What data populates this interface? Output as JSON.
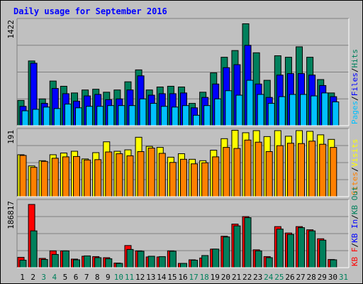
{
  "chart_data": {
    "type": "bar",
    "title": "Daily usage for September 2016",
    "days": [
      "1",
      "2",
      "3",
      "4",
      "5",
      "6",
      "7",
      "8",
      "9",
      "10",
      "11",
      "12",
      "13",
      "14",
      "15",
      "16",
      "17",
      "18",
      "19",
      "20",
      "21",
      "22",
      "23",
      "24",
      "25",
      "26",
      "27",
      "28",
      "29",
      "30",
      "31"
    ],
    "weekend_days": [
      "3",
      "4",
      "10",
      "11",
      "17",
      "18",
      "24",
      "25",
      "31"
    ],
    "colors": {
      "hits": "#00805c",
      "files": "#0000ff",
      "pages": "#00c0ff",
      "visits": "#ffff00",
      "sites": "#ff8000",
      "kb_in": "#ff0000",
      "kb_out": "#00805c",
      "weekday_tick": "#000000",
      "weekend_tick": "#00805c",
      "title": "#0000ff"
    },
    "panels": [
      {
        "id": "hits-files-pages",
        "max_label": "1422",
        "max_value": 1422,
        "legend": [
          {
            "text": "Pages",
            "color": "#00c0ff"
          },
          {
            "text": "/",
            "color": "#000000"
          },
          {
            "text": "Files",
            "color": "#0000ff"
          },
          {
            "text": "/",
            "color": "#000000"
          },
          {
            "text": "Hits",
            "color": "#00805c"
          }
        ],
        "series": [
          {
            "name": "Hits",
            "color": "#00805c",
            "values": [
              340,
              870,
              360,
              600,
              530,
              440,
              480,
              490,
              450,
              480,
              590,
              750,
              480,
              520,
              530,
              520,
              300,
              450,
              710,
              920,
              1010,
              1370,
              980,
              610,
              940,
              920,
              1060,
              920,
              620,
              440,
              0
            ]
          },
          {
            "name": "Files",
            "color": "#0000ff",
            "values": [
              260,
              840,
              300,
              500,
              430,
              330,
              400,
              420,
              350,
              360,
              480,
              670,
              410,
              430,
              430,
              440,
              240,
              380,
              560,
              780,
              820,
              1080,
              560,
              380,
              680,
              700,
              700,
              680,
              540,
              390,
              0
            ]
          },
          {
            "name": "Pages",
            "color": "#00c0ff",
            "values": [
              200,
              220,
              250,
              230,
              290,
              240,
              260,
              260,
              270,
              270,
              270,
              360,
              300,
              260,
              250,
              270,
              140,
              270,
              360,
              470,
              410,
              610,
              420,
              300,
              390,
              420,
              420,
              400,
              440,
              320,
              0
            ]
          }
        ]
      },
      {
        "id": "visits-sites",
        "max_label": "191",
        "max_value": 191,
        "legend": [
          {
            "text": "Sites",
            "color": "#ff8000"
          },
          {
            "text": "/",
            "color": "#000000"
          },
          {
            "text": "Visits",
            "color": "#ffff00"
          }
        ],
        "series": [
          {
            "name": "Visits",
            "color": "#ffff00",
            "values": [
              120,
              88,
              103,
              120,
              125,
              130,
              108,
              126,
              157,
              130,
              134,
              170,
              144,
              141,
              113,
              123,
              107,
              103,
              133,
              166,
              190,
              183,
              189,
              172,
              189,
              173,
              189,
              187,
              177,
              164,
              0
            ]
          },
          {
            "name": "Sites",
            "color": "#ff8000",
            "values": [
              118,
              84,
              101,
              110,
              114,
              115,
              105,
              106,
              128,
              123,
              117,
              129,
              139,
              124,
              98,
              107,
              94,
              97,
              114,
              141,
              138,
              162,
              156,
              129,
              146,
              153,
              152,
              159,
              150,
              141,
              0
            ]
          }
        ]
      },
      {
        "id": "kb-in-out",
        "max_label": "186817",
        "max_value": 186817,
        "legend": [
          {
            "text": "KB F",
            "color": "#ff0000"
          },
          {
            "text": "/",
            "color": "#000000"
          },
          {
            "text": "KB In",
            "color": "#0000ff"
          },
          {
            "text": "/",
            "color": "#000000"
          },
          {
            "text": "KB Out",
            "color": "#00805c"
          }
        ],
        "series": [
          {
            "name": "KB In",
            "color": "#ff0000",
            "values": [
              29000,
              177000,
              26000,
              47000,
              47000,
              24000,
              32000,
              31000,
              28000,
              13000,
              62000,
              47000,
              30000,
              30000,
              47000,
              12000,
              22000,
              27000,
              52000,
              88000,
              122000,
              143000,
              50000,
              31000,
              115000,
              97000,
              115000,
              106000,
              81000,
              23000,
              0
            ]
          },
          {
            "name": "KB Out",
            "color": "#00805c",
            "values": [
              21000,
              103000,
              23000,
              37000,
              47000,
              22000,
              33000,
              28000,
              25000,
              12000,
              51000,
              46000,
              32000,
              31000,
              46000,
              12000,
              21000,
              34000,
              52000,
              86000,
              117000,
              140000,
              47000,
              28000,
              108000,
              93000,
              112000,
              103000,
              77000,
              22000,
              0
            ]
          }
        ]
      }
    ]
  }
}
